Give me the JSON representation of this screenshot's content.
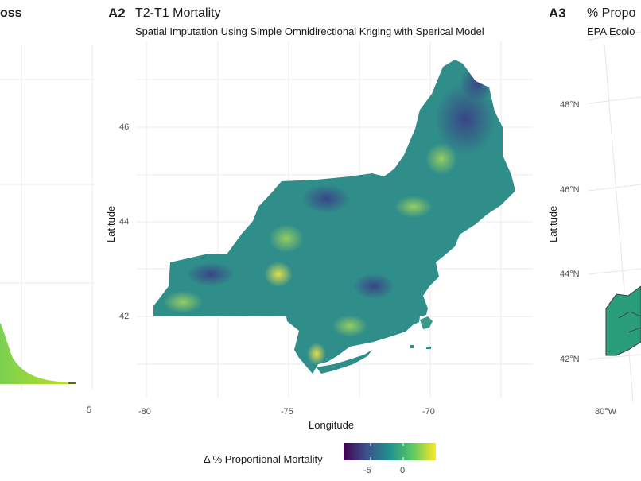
{
  "panel_a1": {
    "title_fragment": "oss",
    "x_tick": "5"
  },
  "panel_a2": {
    "tag": "A2",
    "title": "T2-T1 Mortality",
    "subtitle": "Spatial Imputation Using Simple Omnidirectional Kriging with Sperical Model",
    "xlabel": "Longitude",
    "ylabel": "Latitude",
    "x_ticks": [
      "-80",
      "-75",
      "-70"
    ],
    "y_ticks": [
      "46",
      "44",
      "42"
    ],
    "legend": {
      "title": "Δ % Proportional Mortality",
      "ticks": [
        "-5",
        "0"
      ],
      "colors": [
        "#440154",
        "#3b528b",
        "#21908d",
        "#5dc963",
        "#fde725"
      ]
    }
  },
  "panel_a3": {
    "tag": "A3",
    "title_fragment": "% Propo",
    "subtitle_fragment": "EPA Ecolo",
    "ylabel": "Latitude",
    "y_ticks": [
      "48°N",
      "46°N",
      "44°N",
      "42°N"
    ],
    "x_tick": "80°W",
    "fill_color": "#2a9d7a"
  },
  "colors": {
    "grid": "#ebebeb",
    "map_base": "#2f8d8a",
    "viridis_dark": "#3b528b",
    "viridis_light": "#a6d85a"
  }
}
